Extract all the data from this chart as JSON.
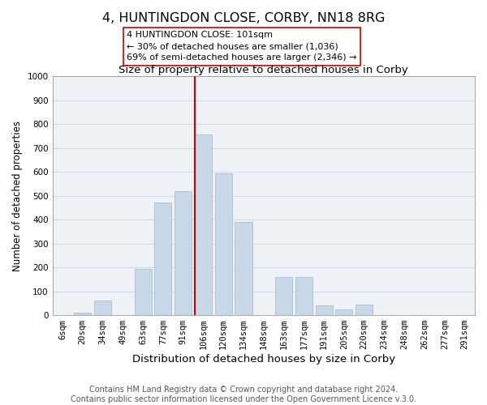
{
  "title": "4, HUNTINGDON CLOSE, CORBY, NN18 8RG",
  "subtitle": "Size of property relative to detached houses in Corby",
  "xlabel": "Distribution of detached houses by size in Corby",
  "ylabel": "Number of detached properties",
  "bar_labels": [
    "6sqm",
    "20sqm",
    "34sqm",
    "49sqm",
    "63sqm",
    "77sqm",
    "91sqm",
    "106sqm",
    "120sqm",
    "134sqm",
    "148sqm",
    "163sqm",
    "177sqm",
    "191sqm",
    "205sqm",
    "220sqm",
    "234sqm",
    "248sqm",
    "262sqm",
    "277sqm",
    "291sqm"
  ],
  "bar_values": [
    0,
    12,
    62,
    0,
    195,
    470,
    520,
    755,
    595,
    390,
    0,
    160,
    160,
    42,
    25,
    45,
    0,
    0,
    0,
    0,
    0
  ],
  "bar_color": "#c8d8e8",
  "bar_edge_color": "#a8bece",
  "vline_color": "#cc0000",
  "vline_x_idx": 7,
  "annotation_title": "4 HUNTINGDON CLOSE: 101sqm",
  "annotation_line1": "← 30% of detached houses are smaller (1,036)",
  "annotation_line2": "69% of semi-detached houses are larger (2,346) →",
  "annotation_box_edgecolor": "#cc0000",
  "footer1": "Contains HM Land Registry data © Crown copyright and database right 2024.",
  "footer2": "Contains public sector information licensed under the Open Government Licence v.3.0.",
  "ylim": [
    0,
    1000
  ],
  "yticks": [
    0,
    100,
    200,
    300,
    400,
    500,
    600,
    700,
    800,
    900,
    1000
  ],
  "bg_color": "#eef2f6",
  "grid_color": "#d0d8e0",
  "title_fontsize": 11.5,
  "subtitle_fontsize": 9.5,
  "xlabel_fontsize": 9.5,
  "ylabel_fontsize": 8.5,
  "tick_fontsize": 7.5,
  "annot_fontsize": 8.0,
  "footer_fontsize": 7.0
}
